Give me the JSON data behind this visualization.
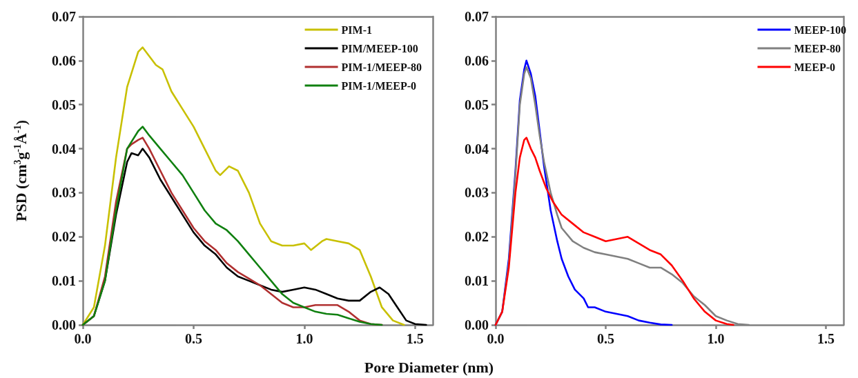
{
  "chart_data": [
    {
      "type": "line",
      "ylabel": "PSD (cm$^{3}$g$^{-1}$Å$^{-1}$)",
      "xlabel": "Pore Diameter (nm)",
      "xlim": [
        0,
        1.58
      ],
      "ylim": [
        0,
        0.07
      ],
      "xticks": [
        {
          "value": 0,
          "label": "0.0"
        },
        {
          "value": 0.5,
          "label": "0.5"
        },
        {
          "value": 1,
          "label": "1.0"
        },
        {
          "value": 1.5,
          "label": "1.5"
        }
      ],
      "yticks": [
        {
          "value": 0,
          "label": "0.00"
        },
        {
          "value": 0.01,
          "label": "0.01"
        },
        {
          "value": 0.02,
          "label": "0.02"
        },
        {
          "value": 0.03,
          "label": "0.03"
        },
        {
          "value": 0.04,
          "label": "0.04"
        },
        {
          "value": 0.05,
          "label": "0.05"
        },
        {
          "value": 0.06,
          "label": "0.06"
        },
        {
          "value": 0.07,
          "label": "0.07"
        }
      ],
      "grid": false,
      "legend": "top right",
      "marker": "none",
      "line_style": "solid",
      "series": [
        {
          "name": "PIM-1",
          "color": "#c8c000",
          "x": [
            0,
            0.05,
            0.1,
            0.15,
            0.2,
            0.25,
            0.27,
            0.3,
            0.33,
            0.36,
            0.4,
            0.45,
            0.5,
            0.55,
            0.6,
            0.62,
            0.66,
            0.7,
            0.75,
            0.8,
            0.85,
            0.9,
            0.95,
            1.0,
            1.03,
            1.08,
            1.1,
            1.15,
            1.2,
            1.25,
            1.3,
            1.35,
            1.4,
            1.45
          ],
          "values": [
            0,
            0.004,
            0.018,
            0.038,
            0.054,
            0.062,
            0.063,
            0.061,
            0.059,
            0.058,
            0.053,
            0.049,
            0.045,
            0.04,
            0.035,
            0.034,
            0.036,
            0.035,
            0.03,
            0.023,
            0.019,
            0.018,
            0.018,
            0.0185,
            0.017,
            0.019,
            0.0195,
            0.019,
            0.0185,
            0.017,
            0.011,
            0.004,
            0.001,
            0
          ]
        },
        {
          "name": "PIM/MEEP-100",
          "color": "#000000",
          "x": [
            0,
            0.05,
            0.1,
            0.15,
            0.2,
            0.22,
            0.25,
            0.27,
            0.3,
            0.35,
            0.4,
            0.45,
            0.5,
            0.55,
            0.6,
            0.65,
            0.7,
            0.75,
            0.8,
            0.85,
            0.9,
            0.95,
            1.0,
            1.05,
            1.1,
            1.15,
            1.2,
            1.25,
            1.3,
            1.34,
            1.38,
            1.42,
            1.46,
            1.5,
            1.55
          ],
          "values": [
            0,
            0.002,
            0.01,
            0.025,
            0.037,
            0.039,
            0.0385,
            0.04,
            0.038,
            0.033,
            0.029,
            0.025,
            0.021,
            0.018,
            0.016,
            0.013,
            0.011,
            0.01,
            0.009,
            0.008,
            0.0075,
            0.008,
            0.0085,
            0.008,
            0.007,
            0.006,
            0.0055,
            0.0055,
            0.0075,
            0.0085,
            0.007,
            0.004,
            0.001,
            0.0002,
            0
          ]
        },
        {
          "name": "PIM-1/MEEP-80",
          "color": "#b03030",
          "x": [
            0,
            0.05,
            0.1,
            0.15,
            0.2,
            0.22,
            0.25,
            0.27,
            0.3,
            0.35,
            0.4,
            0.45,
            0.5,
            0.55,
            0.6,
            0.65,
            0.7,
            0.75,
            0.8,
            0.85,
            0.9,
            0.95,
            1.0,
            1.05,
            1.1,
            1.15,
            1.2,
            1.25,
            1.3,
            1.35
          ],
          "values": [
            0,
            0.002,
            0.011,
            0.028,
            0.04,
            0.041,
            0.042,
            0.0425,
            0.04,
            0.035,
            0.03,
            0.026,
            0.022,
            0.019,
            0.017,
            0.014,
            0.012,
            0.0105,
            0.009,
            0.007,
            0.005,
            0.004,
            0.004,
            0.0045,
            0.0045,
            0.0045,
            0.003,
            0.001,
            0.0002,
            0
          ]
        },
        {
          "name": "PIM-1/MEEP-0",
          "color": "#108010",
          "x": [
            0,
            0.05,
            0.1,
            0.15,
            0.2,
            0.25,
            0.27,
            0.3,
            0.35,
            0.4,
            0.45,
            0.5,
            0.55,
            0.6,
            0.65,
            0.7,
            0.75,
            0.8,
            0.85,
            0.9,
            0.95,
            1.0,
            1.05,
            1.1,
            1.15,
            1.2,
            1.25,
            1.3,
            1.35
          ],
          "values": [
            0,
            0.002,
            0.01,
            0.026,
            0.04,
            0.044,
            0.045,
            0.043,
            0.04,
            0.037,
            0.034,
            0.03,
            0.026,
            0.023,
            0.0215,
            0.019,
            0.016,
            0.013,
            0.01,
            0.007,
            0.005,
            0.004,
            0.003,
            0.0025,
            0.0023,
            0.0015,
            0.0007,
            0.0002,
            0
          ]
        }
      ]
    },
    {
      "type": "line",
      "xlim": [
        0,
        1.58
      ],
      "ylim": [
        0,
        0.07
      ],
      "xticks": [
        {
          "value": 0,
          "label": "0.0"
        },
        {
          "value": 0.5,
          "label": "0.5"
        },
        {
          "value": 1,
          "label": "1.0"
        },
        {
          "value": 1.5,
          "label": "1.5"
        }
      ],
      "yticks": [
        {
          "value": 0,
          "label": "0.00"
        },
        {
          "value": 0.01,
          "label": "0.01"
        },
        {
          "value": 0.02,
          "label": "0.02"
        },
        {
          "value": 0.03,
          "label": "0.03"
        },
        {
          "value": 0.04,
          "label": "0.04"
        },
        {
          "value": 0.05,
          "label": "0.05"
        },
        {
          "value": 0.06,
          "label": "0.06"
        },
        {
          "value": 0.07,
          "label": "0.07"
        }
      ],
      "grid": false,
      "legend": "top right",
      "marker": "none",
      "line_style": "solid",
      "series": [
        {
          "name": "MEEP-100",
          "color": "#0000ff",
          "x": [
            0,
            0.03,
            0.06,
            0.09,
            0.11,
            0.13,
            0.14,
            0.16,
            0.18,
            0.2,
            0.22,
            0.25,
            0.28,
            0.3,
            0.33,
            0.36,
            0.4,
            0.42,
            0.45,
            0.5,
            0.55,
            0.6,
            0.65,
            0.7,
            0.75,
            0.8
          ],
          "values": [
            0,
            0.003,
            0.015,
            0.035,
            0.051,
            0.058,
            0.06,
            0.057,
            0.052,
            0.044,
            0.036,
            0.026,
            0.019,
            0.015,
            0.011,
            0.008,
            0.006,
            0.004,
            0.004,
            0.003,
            0.0025,
            0.002,
            0.001,
            0.0005,
            0.0001,
            0
          ]
        },
        {
          "name": "MEEP-80",
          "color": "#808080",
          "x": [
            0,
            0.03,
            0.06,
            0.09,
            0.11,
            0.13,
            0.14,
            0.16,
            0.18,
            0.2,
            0.22,
            0.25,
            0.28,
            0.3,
            0.35,
            0.4,
            0.45,
            0.5,
            0.55,
            0.6,
            0.65,
            0.7,
            0.75,
            0.8,
            0.85,
            0.9,
            0.95,
            1.0,
            1.05,
            1.1,
            1.15
          ],
          "values": [
            0,
            0.003,
            0.014,
            0.034,
            0.05,
            0.057,
            0.0585,
            0.056,
            0.05,
            0.043,
            0.037,
            0.03,
            0.025,
            0.022,
            0.019,
            0.0175,
            0.0165,
            0.016,
            0.0155,
            0.015,
            0.014,
            0.013,
            0.013,
            0.0115,
            0.0095,
            0.0065,
            0.0045,
            0.002,
            0.001,
            0.0002,
            0
          ]
        },
        {
          "name": "MEEP-0",
          "color": "#ff0000",
          "x": [
            0,
            0.03,
            0.06,
            0.09,
            0.11,
            0.13,
            0.14,
            0.16,
            0.18,
            0.2,
            0.23,
            0.26,
            0.3,
            0.35,
            0.4,
            0.45,
            0.5,
            0.55,
            0.6,
            0.65,
            0.7,
            0.75,
            0.8,
            0.85,
            0.9,
            0.95,
            1.0,
            1.05,
            1.08
          ],
          "values": [
            0,
            0.003,
            0.013,
            0.03,
            0.038,
            0.042,
            0.0425,
            0.04,
            0.038,
            0.035,
            0.031,
            0.028,
            0.025,
            0.023,
            0.021,
            0.02,
            0.019,
            0.0195,
            0.02,
            0.0185,
            0.017,
            0.016,
            0.0135,
            0.01,
            0.006,
            0.003,
            0.001,
            0.0002,
            0
          ]
        }
      ]
    }
  ]
}
